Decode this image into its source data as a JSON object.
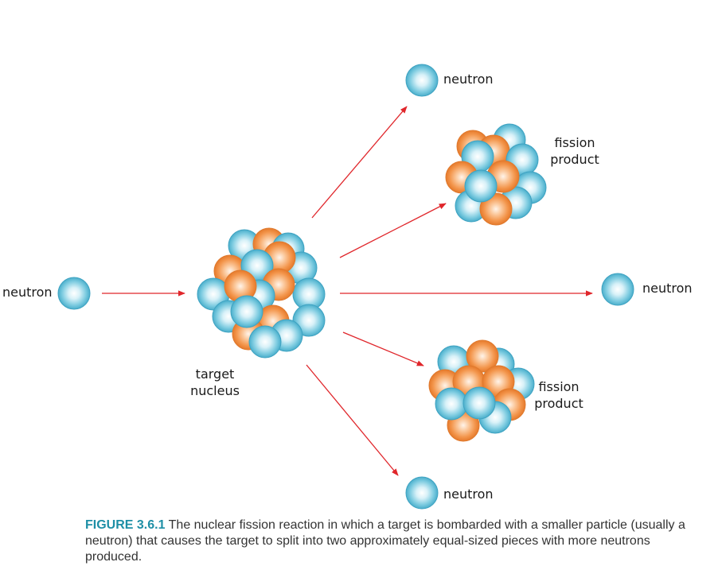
{
  "labels": {
    "neutron_incoming": "neutron",
    "target_line1": "target",
    "target_line2": "nucleus",
    "neutron_top": "neutron",
    "fission_top_line1": "fission",
    "fission_top_line2": "product",
    "neutron_right": "neutron",
    "fission_bottom_line1": "fission",
    "fission_bottom_line2": "product",
    "neutron_bottom": "neutron"
  },
  "caption": {
    "figure_number": "FIGURE 3.6.1",
    "text": " The nuclear fission reaction in which a target is bombarded with a smaller particle (usually a neutron) that causes the target to split into two approximately equal-sized pieces with more neutrons produced."
  },
  "colors": {
    "neutron": "#5bbcd6",
    "proton": "#f08a3c",
    "arrow": "#e0262b",
    "caption_accent": "#1e8fa6"
  }
}
